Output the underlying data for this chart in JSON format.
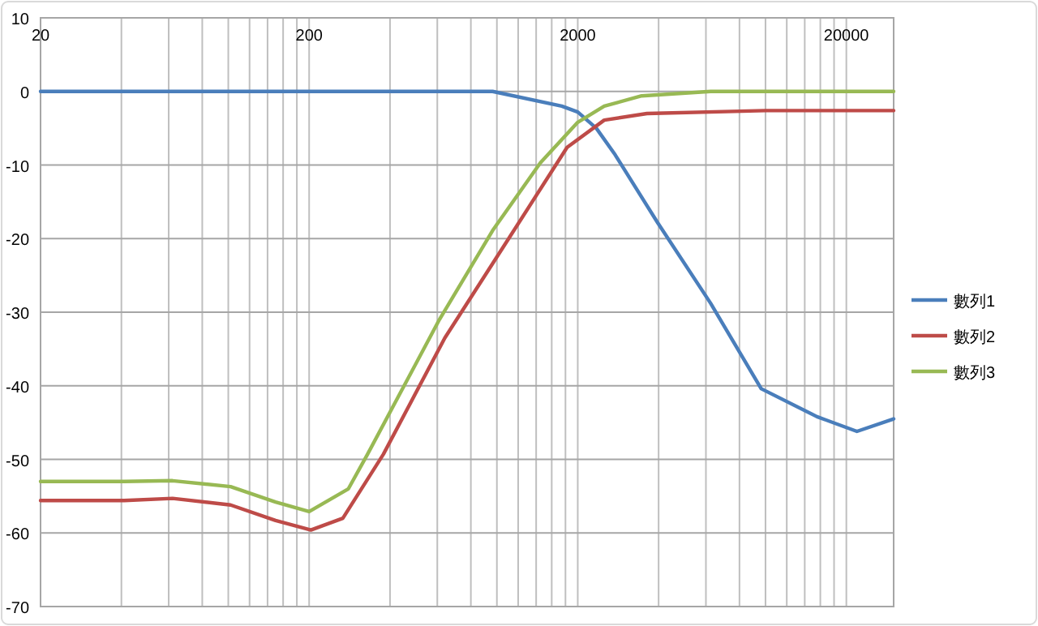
{
  "chart_data": {
    "type": "line",
    "log": "x",
    "grid": true,
    "legend": "right",
    "xlim": [
      20,
      30000
    ],
    "ylim": [
      -70,
      10
    ],
    "xticks": [
      20,
      {
        "value": 40,
        "label": null
      },
      {
        "value": 60,
        "label": null
      },
      {
        "value": 80,
        "label": null
      },
      {
        "value": 100,
        "label": null
      },
      {
        "value": 120,
        "label": null
      },
      {
        "value": 140,
        "label": null
      },
      {
        "value": 160,
        "label": null
      },
      {
        "value": 180,
        "label": null
      },
      200,
      {
        "value": 400,
        "label": null
      },
      {
        "value": 600,
        "label": null
      },
      {
        "value": 800,
        "label": null
      },
      {
        "value": 1000,
        "label": null
      },
      {
        "value": 1200,
        "label": null
      },
      {
        "value": 1400,
        "label": null
      },
      {
        "value": 1600,
        "label": null
      },
      {
        "value": 1800,
        "label": null
      },
      2000,
      {
        "value": 4000,
        "label": null
      },
      {
        "value": 6000,
        "label": null
      },
      {
        "value": 8000,
        "label": null
      },
      {
        "value": 10000,
        "label": null
      },
      {
        "value": 12000,
        "label": null
      },
      {
        "value": 14000,
        "label": null
      },
      {
        "value": 16000,
        "label": null
      },
      {
        "value": 18000,
        "label": null
      },
      20000
    ],
    "yticks": [
      10,
      0,
      -10,
      -20,
      -30,
      -40,
      -50,
      -60,
      -70
    ],
    "series": [
      {
        "name": "數列1",
        "color": "#4a7ebb",
        "x": [
          20,
          200,
          964,
          1745,
          2000,
          2345,
          2755,
          3960,
          6250,
          9640,
          15550,
          21900,
          30000
        ],
        "values": [
          0,
          0,
          0,
          -2,
          -2.8,
          -5,
          -8.6,
          -17.8,
          -28.8,
          -40.4,
          -44.2,
          -46.2,
          -44.5
        ]
      },
      {
        "name": "數列2",
        "color": "#be4b48",
        "x": [
          20,
          41,
          62,
          102,
          150,
          203,
          267,
          378,
          640,
          1106,
          1825,
          2510,
          3620,
          10000,
          30000
        ],
        "values": [
          -55.6,
          -55.6,
          -55.3,
          -56.2,
          -58.3,
          -59.6,
          -58,
          -49.3,
          -33.5,
          -20,
          -7.6,
          -3.9,
          -3,
          -2.6,
          -2.6
        ]
      },
      {
        "name": "數列3",
        "color": "#98b954",
        "x": [
          20,
          41,
          62,
          102,
          150,
          200,
          280,
          330,
          611,
          964,
          1452,
          2000,
          2510,
          3460,
          6250,
          30000
        ],
        "values": [
          -53,
          -53,
          -52.9,
          -53.7,
          -55.8,
          -57.1,
          -54,
          -49.3,
          -31,
          -18.9,
          -9.7,
          -4.2,
          -2,
          -0.6,
          0,
          0
        ]
      }
    ]
  }
}
